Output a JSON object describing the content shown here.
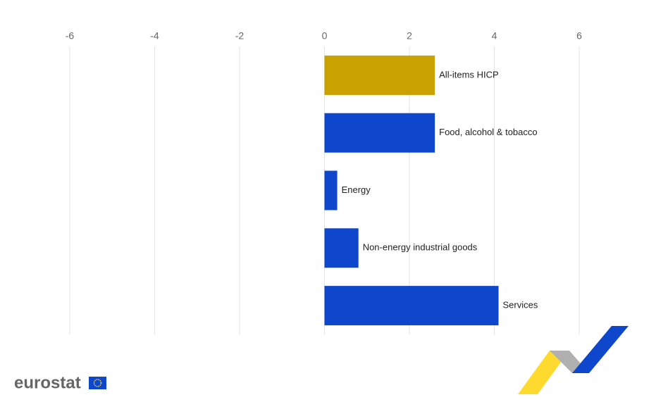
{
  "chart_data": {
    "type": "hbar",
    "categories": [
      "All-items HICP",
      "Food, alcohol & tobacco",
      "Energy",
      "Non-energy industrial goods",
      "Services"
    ],
    "values": [
      2.6,
      2.6,
      0.3,
      0.8,
      4.1
    ],
    "colors": [
      "#c9a100",
      "#0e47cb",
      "#0e47cb",
      "#0e47cb",
      "#0e47cb"
    ],
    "xlim": [
      -6,
      6
    ],
    "xticks": [
      -6,
      -4,
      -2,
      0,
      2,
      4,
      6
    ],
    "grid": true
  },
  "logo": "eurostat"
}
